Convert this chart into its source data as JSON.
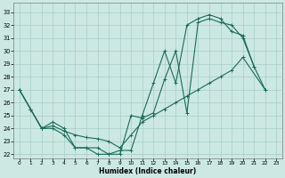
{
  "xlabel": "Humidex (Indice chaleur)",
  "background_color": "#cce8e2",
  "grid_color": "#a8cec8",
  "line_color": "#1a6b5a",
  "xlim": [
    -0.5,
    23.5
  ],
  "ylim": [
    21.7,
    33.7
  ],
  "xticks": [
    0,
    1,
    2,
    3,
    4,
    5,
    6,
    7,
    8,
    9,
    10,
    11,
    12,
    13,
    14,
    15,
    16,
    17,
    18,
    19,
    20,
    21,
    22,
    23
  ],
  "yticks": [
    22,
    23,
    24,
    25,
    26,
    27,
    28,
    29,
    30,
    31,
    32,
    33
  ],
  "line1_x": [
    0,
    1,
    2,
    3,
    4,
    5,
    6,
    7,
    8,
    9,
    10,
    11,
    12,
    13,
    14,
    15,
    16,
    17,
    18,
    19,
    20,
    21,
    22
  ],
  "line1_y": [
    27,
    25.5,
    24,
    24.5,
    24.0,
    22.5,
    22.5,
    22.5,
    22.0,
    22.3,
    22.3,
    25.0,
    27.5,
    30.0,
    27.5,
    32.0,
    32.5,
    32.8,
    32.5,
    31.5,
    31.2,
    28.8,
    null
  ],
  "line2_x": [
    0,
    1,
    2,
    3,
    4,
    5,
    6,
    7,
    8,
    9,
    10,
    11,
    12,
    13,
    14,
    15,
    16,
    17,
    18,
    19,
    20,
    21,
    22
  ],
  "line2_y": [
    27,
    25.5,
    24,
    24.0,
    23.5,
    22.5,
    22.5,
    22.0,
    22.0,
    22.0,
    25.0,
    24.8,
    25.2,
    27.8,
    30.0,
    25.2,
    32.2,
    32.5,
    32.2,
    32.0,
    31.0,
    28.8,
    27.0
  ],
  "line3_x": [
    0,
    1,
    2,
    3,
    4,
    5,
    6,
    7,
    8,
    9,
    10,
    11,
    12,
    13,
    14,
    15,
    16,
    17,
    18,
    19,
    20,
    21,
    22
  ],
  "line3_y": [
    27,
    25.5,
    24,
    24.2,
    23.8,
    23.5,
    23.3,
    23.2,
    23.0,
    22.5,
    23.5,
    24.5,
    25.0,
    25.5,
    26.0,
    26.5,
    27.0,
    27.5,
    28.0,
    28.5,
    29.5,
    null,
    27.0
  ]
}
